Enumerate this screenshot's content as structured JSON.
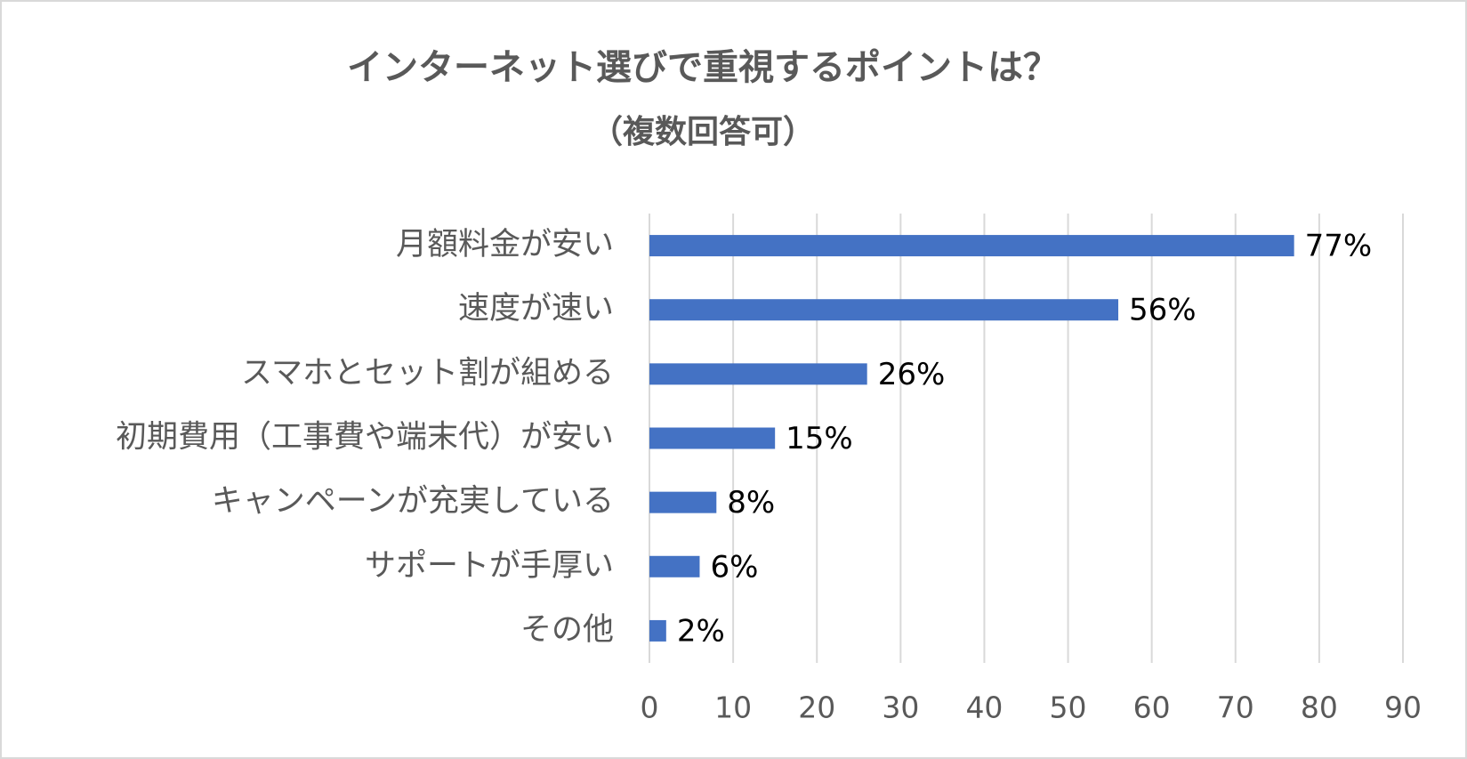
{
  "chart_data": {
    "type": "bar",
    "orientation": "horizontal",
    "title": "インターネット選びで重視するポイントは？",
    "subtitle": "（複数回答可）",
    "categories": [
      "月額料金が安い",
      "速度が速い",
      "スマホとセット割が組める",
      "初期費用（工事費や端末代）が安い",
      "キャンペーンが充実している",
      "サポートが手厚い",
      "その他"
    ],
    "values": [
      77,
      56,
      26,
      15,
      8,
      6,
      2
    ],
    "value_labels": [
      "77%",
      "56%",
      "26%",
      "15%",
      "8%",
      "6%",
      "2%"
    ],
    "color": "#4472c4",
    "xlim": [
      0,
      90
    ],
    "xticks": [
      0,
      10,
      20,
      30,
      40,
      50,
      60,
      70,
      80,
      90
    ],
    "grid": true
  }
}
